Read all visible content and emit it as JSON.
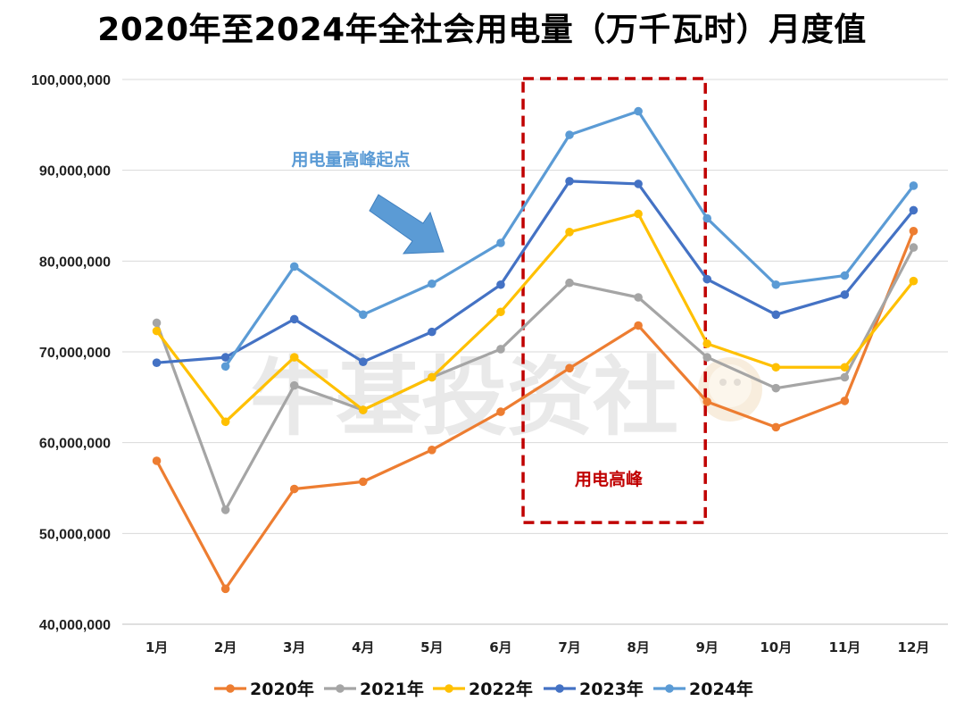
{
  "title": "2020年至2024年全社会用电量（万千瓦时）月度值",
  "annotations": {
    "peak_start": "用电量高峰起点",
    "peak_box": "用电高峰",
    "watermark": "牛基投资社"
  },
  "chart_data": {
    "type": "line",
    "title": "2020年至2024年全社会用电量（万千瓦时）月度值",
    "xlabel": "",
    "ylabel": "",
    "ylim": [
      40000000,
      100000000
    ],
    "yticks": [
      40000000,
      50000000,
      60000000,
      70000000,
      80000000,
      90000000,
      100000000
    ],
    "ytick_labels": [
      "40,000,000",
      "50,000,000",
      "60,000,000",
      "70,000,000",
      "80,000,000",
      "90,000,000",
      "100,000,000"
    ],
    "grid": true,
    "legend": "bottom",
    "categories": [
      "1月",
      "2月",
      "3月",
      "4月",
      "5月",
      "6月",
      "7月",
      "8月",
      "9月",
      "10月",
      "11月",
      "12月"
    ],
    "series": [
      {
        "name": "2020年",
        "color": "#ED7D31",
        "values": [
          58000000,
          43900000,
          54900000,
          55700000,
          59200000,
          63400000,
          68200000,
          72900000,
          64500000,
          61700000,
          64600000,
          83300000
        ]
      },
      {
        "name": "2021年",
        "color": "#A5A5A5",
        "values": [
          73200000,
          52600000,
          66300000,
          63600000,
          67200000,
          70300000,
          77600000,
          76000000,
          69400000,
          66000000,
          67200000,
          81500000
        ]
      },
      {
        "name": "2022年",
        "color": "#FFC000",
        "values": [
          72300000,
          62300000,
          69400000,
          63600000,
          67200000,
          74400000,
          83200000,
          85200000,
          70900000,
          68300000,
          68300000,
          77800000
        ]
      },
      {
        "name": "2023年",
        "color": "#4472C4",
        "values": [
          68800000,
          69400000,
          73600000,
          68900000,
          72200000,
          77400000,
          88800000,
          88500000,
          78000000,
          74100000,
          76300000,
          85600000
        ]
      },
      {
        "name": "2024年",
        "color": "#5B9BD5",
        "values": [
          null,
          68400000,
          79400000,
          74100000,
          77500000,
          82000000,
          93900000,
          96500000,
          84700000,
          77400000,
          78400000,
          88300000
        ]
      }
    ],
    "highlight_range": [
      "7月",
      "9月"
    ]
  }
}
